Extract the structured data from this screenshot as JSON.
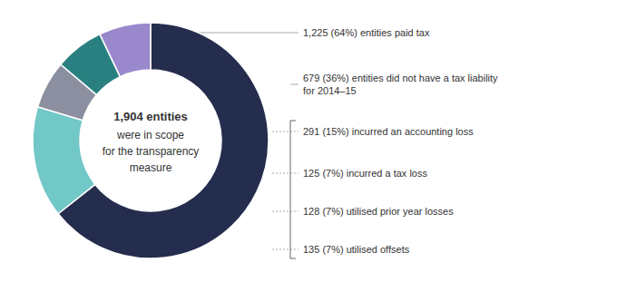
{
  "chart_data": {
    "type": "pie",
    "values": [
      1225,
      291,
      125,
      128,
      135
    ],
    "colors": [
      "#252d4e",
      "#72c7c7",
      "#8c8fa0",
      "#2a8080",
      "#9988cc"
    ],
    "center_text": [
      "1,904 entities",
      "were in scope",
      "for the transparency",
      "measure"
    ],
    "annotations": [
      "1,225 (64%) entities paid tax",
      "679 (36%) entities did not have a tax liability\nfor 2014–15",
      "291 (15%) incurred an accounting loss",
      "125 (7%) incurred a tax loss",
      "128 (7%) utilised prior year losses",
      "135 (7%) utilised offsets"
    ]
  }
}
